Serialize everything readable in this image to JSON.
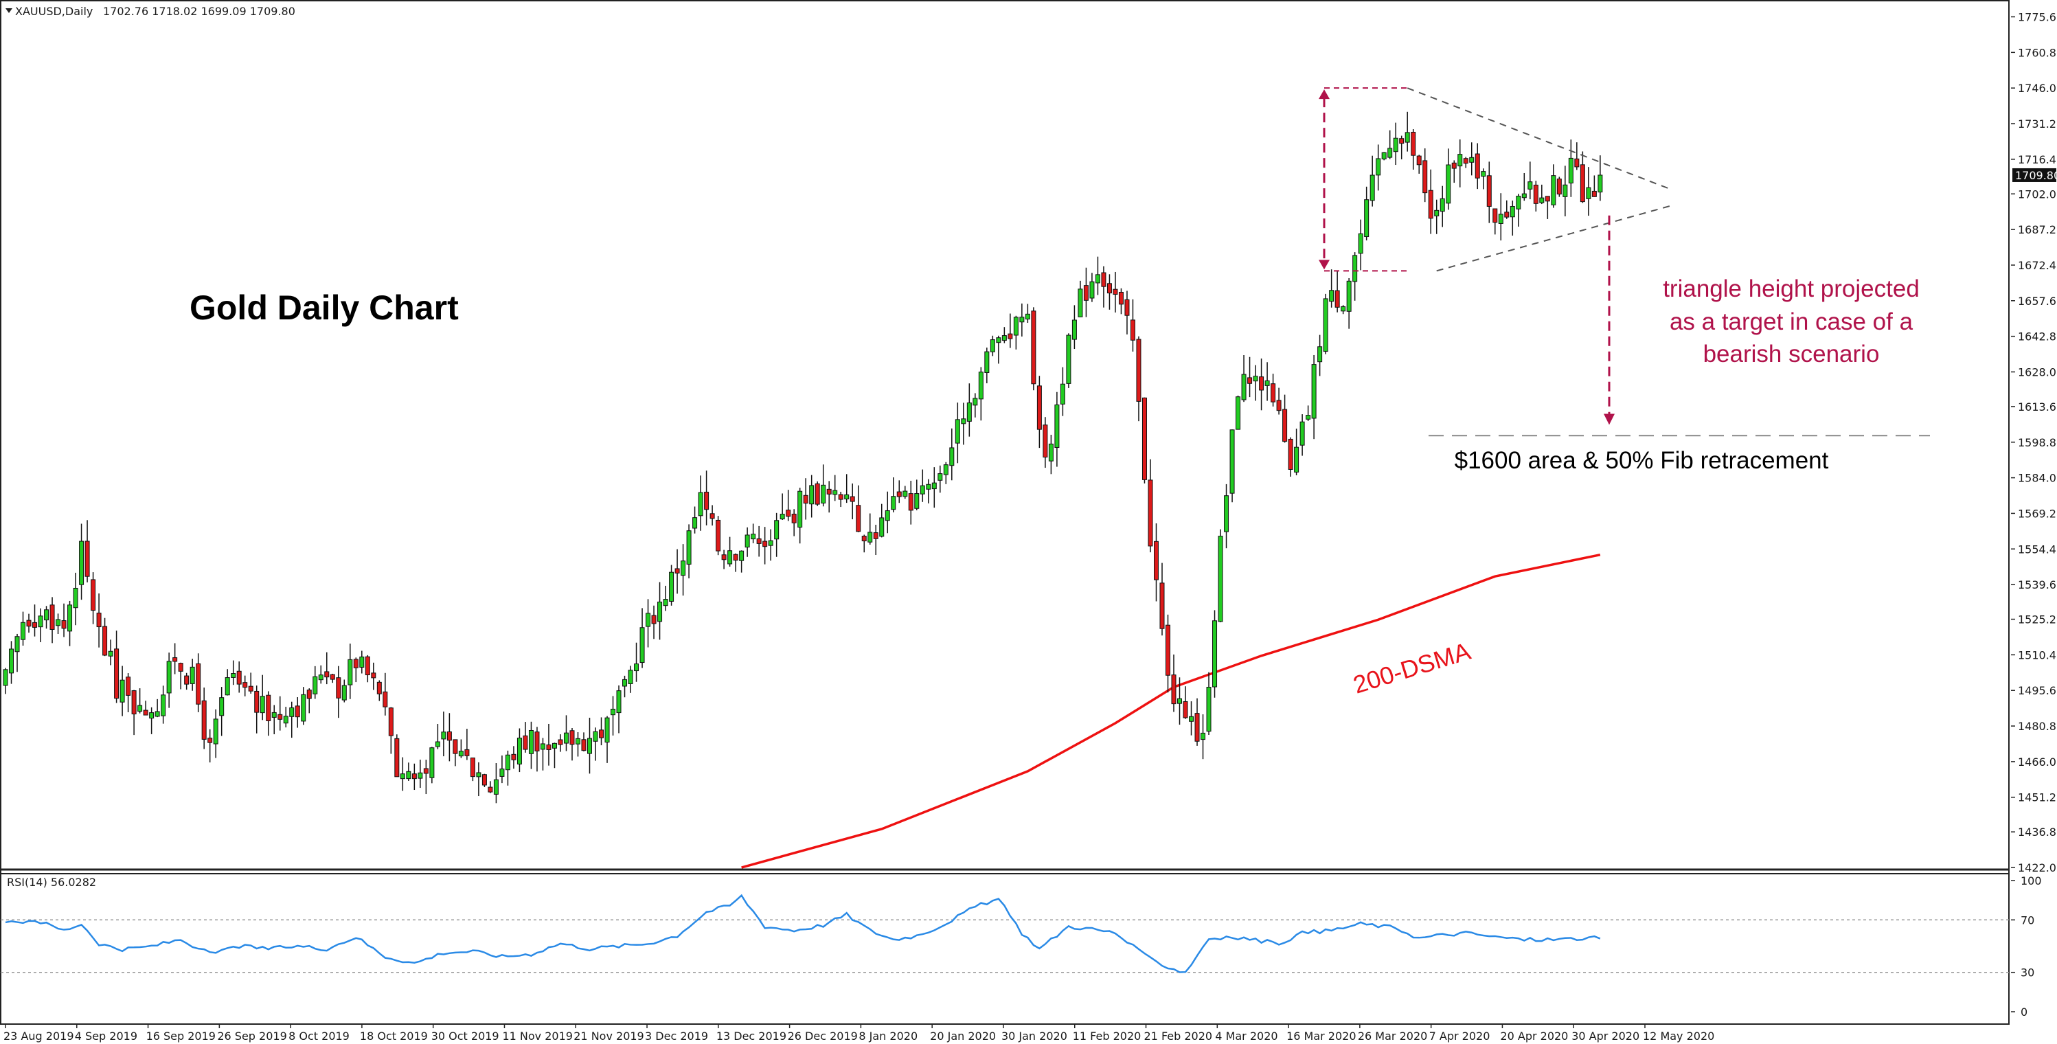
{
  "header": {
    "symbol": "XAUUSD,Daily",
    "ohlc": "1702.76 1718.02 1699.09 1709.80"
  },
  "title": "Gold Daily Chart",
  "annotations": {
    "triangle_note": [
      "triangle height projected",
      "as a target in case of a",
      "bearish scenario"
    ],
    "fib_note": "$1600 area & 50% Fib retracement",
    "ma_label": "200-DSMA"
  },
  "price_axis": {
    "ticks": [
      "1775.60",
      "1760.80",
      "1746.00",
      "1731.20",
      "1716.40",
      "1702.00",
      "1687.20",
      "1672.40",
      "1657.60",
      "1642.80",
      "1628.00",
      "1613.60",
      "1598.80",
      "1584.00",
      "1569.20",
      "1554.40",
      "1539.60",
      "1525.20",
      "1510.40",
      "1495.60",
      "1480.80",
      "1466.00",
      "1451.20",
      "1436.80",
      "1422.00"
    ],
    "last_price": "1709.80"
  },
  "rsi": {
    "label": "RSI(14) 56.0282",
    "ticks": [
      "100",
      "70",
      "30",
      "0"
    ],
    "levels": [
      70,
      30
    ]
  },
  "date_axis": [
    "23 Aug 2019",
    "4 Sep 2019",
    "16 Sep 2019",
    "26 Sep 2019",
    "8 Oct 2019",
    "18 Oct 2019",
    "30 Oct 2019",
    "11 Nov 2019",
    "21 Nov 2019",
    "3 Dec 2019",
    "13 Dec 2019",
    "26 Dec 2019",
    "8 Jan 2020",
    "20 Jan 2020",
    "30 Jan 2020",
    "11 Feb 2020",
    "21 Feb 2020",
    "4 Mar 2020",
    "16 Mar 2020",
    "26 Mar 2020",
    "7 Apr 2020",
    "20 Apr 2020",
    "30 Apr 2020",
    "12 May 2020"
  ],
  "colors": {
    "bull": "#22cc22",
    "bear": "#dd1a1a",
    "sma": "#ee1111",
    "rsi": "#2a8ae6",
    "annotation": "#b0124a",
    "pattern_lines": "#555555"
  },
  "chart_data": {
    "type": "candlestick",
    "instrument": "XAUUSD",
    "timeframe": "Daily",
    "ylim": [
      1422.0,
      1775.6
    ],
    "rsi_ylim": [
      0,
      100
    ],
    "anchors": [
      [
        0,
        1500
      ],
      [
        3,
        1525
      ],
      [
        6,
        1530
      ],
      [
        10,
        1522
      ],
      [
        13,
        1553
      ],
      [
        16,
        1520
      ],
      [
        19,
        1497
      ],
      [
        22,
        1490
      ],
      [
        26,
        1488
      ],
      [
        29,
        1510
      ],
      [
        32,
        1500
      ],
      [
        35,
        1470
      ],
      [
        38,
        1500
      ],
      [
        42,
        1492
      ],
      [
        45,
        1487
      ],
      [
        48,
        1490
      ],
      [
        51,
        1490
      ],
      [
        54,
        1502
      ],
      [
        57,
        1497
      ],
      [
        60,
        1508
      ],
      [
        64,
        1496
      ],
      [
        67,
        1462
      ],
      [
        70,
        1462
      ],
      [
        74,
        1474
      ],
      [
        77,
        1472
      ],
      [
        81,
        1462
      ],
      [
        84,
        1460
      ],
      [
        87,
        1470
      ],
      [
        90,
        1477
      ],
      [
        94,
        1472
      ],
      [
        97,
        1475
      ],
      [
        100,
        1476
      ],
      [
        103,
        1481
      ],
      [
        106,
        1495
      ],
      [
        109,
        1520
      ],
      [
        112,
        1532
      ],
      [
        116,
        1552
      ],
      [
        119,
        1575
      ],
      [
        122,
        1558
      ],
      [
        125,
        1555
      ],
      [
        128,
        1558
      ],
      [
        131,
        1560
      ],
      [
        134,
        1567
      ],
      [
        137,
        1578
      ],
      [
        141,
        1578
      ],
      [
        144,
        1580
      ],
      [
        147,
        1558
      ],
      [
        150,
        1565
      ],
      [
        153,
        1575
      ],
      [
        156,
        1575
      ],
      [
        159,
        1582
      ],
      [
        162,
        1598
      ],
      [
        166,
        1622
      ],
      [
        169,
        1640
      ],
      [
        172,
        1645
      ],
      [
        175,
        1648
      ],
      [
        178,
        1588
      ],
      [
        181,
        1628
      ],
      [
        184,
        1658
      ],
      [
        187,
        1672
      ],
      [
        190,
        1660
      ],
      [
        193,
        1640
      ],
      [
        196,
        1560
      ],
      [
        199,
        1500
      ],
      [
        202,
        1480
      ],
      [
        205,
        1475
      ],
      [
        208,
        1556
      ],
      [
        211,
        1622
      ],
      [
        214,
        1628
      ],
      [
        217,
        1620
      ],
      [
        220,
        1585
      ],
      [
        223,
        1612
      ],
      [
        226,
        1658
      ],
      [
        229,
        1660
      ],
      [
        232,
        1685
      ],
      [
        235,
        1715
      ],
      [
        238,
        1730
      ],
      [
        241,
        1720
      ],
      [
        244,
        1690
      ],
      [
        247,
        1710
      ],
      [
        250,
        1715
      ],
      [
        253,
        1705
      ],
      [
        256,
        1690
      ],
      [
        259,
        1705
      ],
      [
        262,
        1700
      ],
      [
        265,
        1705
      ],
      [
        268,
        1712
      ],
      [
        271,
        1700
      ],
      [
        273,
        1709.8
      ]
    ],
    "sma200": [
      [
        126,
        1422
      ],
      [
        150,
        1438
      ],
      [
        175,
        1462
      ],
      [
        190,
        1482
      ],
      [
        200,
        1497
      ],
      [
        215,
        1510
      ],
      [
        235,
        1525
      ],
      [
        255,
        1543
      ],
      [
        273,
        1552
      ]
    ],
    "triangle": {
      "upper": [
        [
          240,
          1746
        ],
        [
          285,
          1704
        ]
      ],
      "lower": [
        [
          245,
          1670
        ],
        [
          285,
          1697
        ]
      ]
    },
    "height_arrow": {
      "top": 1746,
      "bottom": 1670
    },
    "projection": {
      "from": 1693,
      "to": 1606
    },
    "fib_level": 1601.5,
    "rsi_anchors": [
      [
        0,
        67
      ],
      [
        5,
        70
      ],
      [
        10,
        62
      ],
      [
        13,
        67
      ],
      [
        16,
        52
      ],
      [
        20,
        47
      ],
      [
        25,
        50
      ],
      [
        30,
        55
      ],
      [
        35,
        44
      ],
      [
        40,
        50
      ],
      [
        45,
        48
      ],
      [
        50,
        50
      ],
      [
        55,
        48
      ],
      [
        60,
        57
      ],
      [
        65,
        42
      ],
      [
        70,
        37
      ],
      [
        75,
        45
      ],
      [
        80,
        46
      ],
      [
        85,
        42
      ],
      [
        90,
        44
      ],
      [
        95,
        52
      ],
      [
        100,
        48
      ],
      [
        105,
        50
      ],
      [
        110,
        52
      ],
      [
        115,
        58
      ],
      [
        120,
        76
      ],
      [
        124,
        81
      ],
      [
        126,
        88
      ],
      [
        130,
        65
      ],
      [
        135,
        62
      ],
      [
        140,
        66
      ],
      [
        144,
        74
      ],
      [
        148,
        62
      ],
      [
        152,
        55
      ],
      [
        156,
        58
      ],
      [
        160,
        65
      ],
      [
        166,
        80
      ],
      [
        170,
        86
      ],
      [
        174,
        60
      ],
      [
        177,
        48
      ],
      [
        182,
        65
      ],
      [
        186,
        63
      ],
      [
        190,
        60
      ],
      [
        195,
        43
      ],
      [
        199,
        34
      ],
      [
        202,
        30
      ],
      [
        206,
        56
      ],
      [
        212,
        56
      ],
      [
        218,
        52
      ],
      [
        222,
        60
      ],
      [
        227,
        62
      ],
      [
        232,
        67
      ],
      [
        238,
        64
      ],
      [
        242,
        56
      ],
      [
        245,
        58
      ],
      [
        250,
        60
      ],
      [
        255,
        57
      ],
      [
        260,
        55
      ],
      [
        265,
        55
      ],
      [
        270,
        56
      ],
      [
        273,
        56
      ]
    ]
  }
}
